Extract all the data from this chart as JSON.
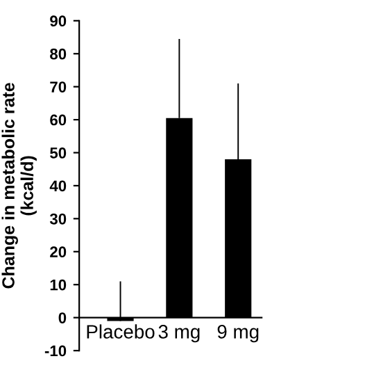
{
  "chart_data": {
    "type": "bar",
    "ylabel": "Change in metabolic rate\n(kcal/d)",
    "categories": [
      "Placebo",
      "3 mg",
      "9 mg"
    ],
    "values": [
      -1,
      60.5,
      48
    ],
    "errors": [
      [
        -1,
        11
      ],
      [
        60.5,
        84.5
      ],
      [
        48,
        71
      ]
    ],
    "color": "#000000",
    "ylim": [
      -10,
      90
    ],
    "yticks": [
      -10,
      0,
      10,
      20,
      30,
      40,
      50,
      60,
      70,
      80,
      90
    ],
    "grid": false,
    "legend": false
  }
}
